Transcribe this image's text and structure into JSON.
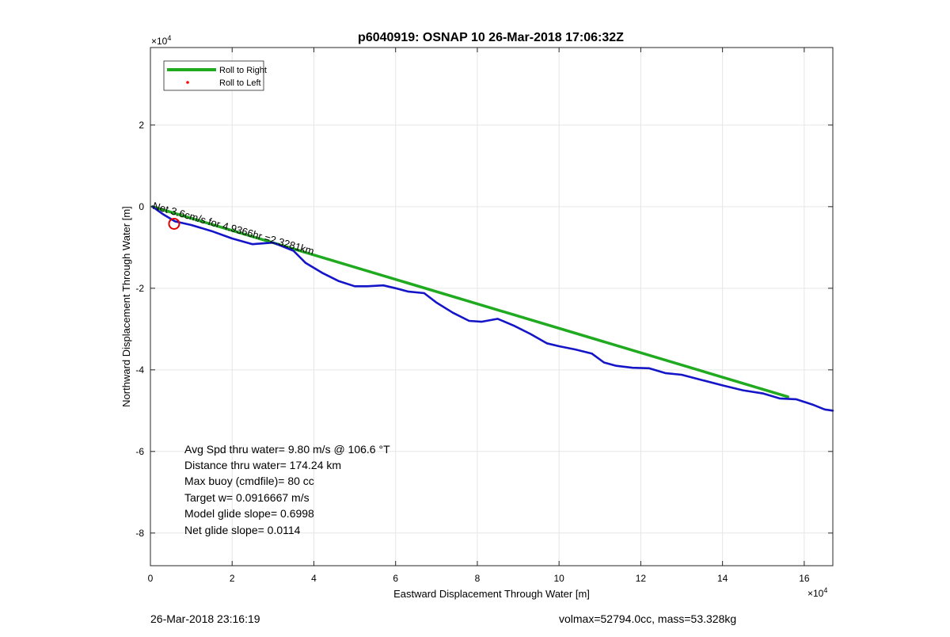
{
  "colors": {
    "roll_right": "#1faa1f",
    "roll_left": "#ff0000",
    "track": "#1515c8",
    "grid": "#e6e6e6",
    "axis": "#262626",
    "marker_ring": "#e00000"
  },
  "chart_data": {
    "type": "line",
    "title": "p6040919: OSNAP 10 26-Mar-2018 17:06:32Z",
    "xlabel": "Eastward Displacement Through Water [m]",
    "ylabel": "Northward Displacement Through Water [m]",
    "x_exponent_label": "×10",
    "x_exponent_power": "4",
    "y_exponent_label": "×10",
    "y_exponent_power": "4",
    "xlim": [
      0,
      16.7
    ],
    "ylim": [
      -8.8,
      3.9
    ],
    "scale_factor": 10000,
    "xticks": [
      0,
      2,
      4,
      6,
      8,
      10,
      12,
      14,
      16
    ],
    "yticks": [
      -8,
      -6,
      -4,
      -2,
      0,
      2
    ],
    "xtick_labels": [
      "0",
      "2",
      "4",
      "6",
      "8",
      "10",
      "12",
      "14",
      "16"
    ],
    "ytick_labels": [
      "-8",
      "-6",
      "-4",
      "-2",
      "0",
      "2"
    ],
    "grid": true,
    "legend": {
      "position": "top-left",
      "entries": [
        "Roll to Right",
        "Roll to Left"
      ]
    },
    "series": [
      {
        "name": "Roll to Right",
        "style": "line",
        "x": [
          0.05,
          15.6
        ],
        "y": [
          0.0,
          -4.66
        ]
      },
      {
        "style": "line",
        "x": [
          0.05,
          0.3,
          0.6,
          1.0,
          1.5,
          2.0,
          2.5,
          3.0,
          3.5,
          3.8,
          4.2,
          4.6,
          5.0,
          5.3,
          5.7,
          6.0,
          6.3,
          6.7,
          7.0,
          7.4,
          7.8,
          8.1,
          8.5,
          8.9,
          9.3,
          9.7,
          10.0,
          10.4,
          10.8,
          11.1,
          11.4,
          11.8,
          12.2,
          12.6,
          13.0,
          13.5,
          14.0,
          14.5,
          15.0,
          15.4,
          15.8,
          16.2,
          16.5,
          16.7
        ],
        "y": [
          0.0,
          -0.18,
          -0.36,
          -0.45,
          -0.6,
          -0.78,
          -0.92,
          -0.88,
          -1.08,
          -1.38,
          -1.62,
          -1.82,
          -1.95,
          -1.95,
          -1.93,
          -2.0,
          -2.08,
          -2.12,
          -2.35,
          -2.6,
          -2.8,
          -2.82,
          -2.75,
          -2.92,
          -3.12,
          -3.35,
          -3.42,
          -3.5,
          -3.6,
          -3.82,
          -3.9,
          -3.95,
          -3.96,
          -4.08,
          -4.12,
          -4.25,
          -4.38,
          -4.5,
          -4.58,
          -4.7,
          -4.72,
          -4.85,
          -4.97,
          -5.0
        ]
      }
    ],
    "annotations": [
      {
        "text": "Net 3.6cm/s for 4.9366hr =2.3281km",
        "x": 0.0,
        "y": -0.05,
        "rotation_deg": 16
      },
      {
        "text": "Avg Spd thru water=  9.80 m/s @ 106.6 °T"
      },
      {
        "text": "Distance thru water= 174.24 km"
      },
      {
        "text": "Max buoy (cmdfile)= 80 cc"
      },
      {
        "text": "Target w= 0.0916667 m/s"
      },
      {
        "text": "Model glide slope= 0.6998"
      },
      {
        "text": "Net glide slope= 0.0114"
      }
    ],
    "marker": {
      "x": 0.58,
      "y": -0.42
    }
  },
  "footer": {
    "timestamp": "26-Mar-2018 23:16:19",
    "info": "volmax=52794.0cc, mass=53.328kg"
  }
}
